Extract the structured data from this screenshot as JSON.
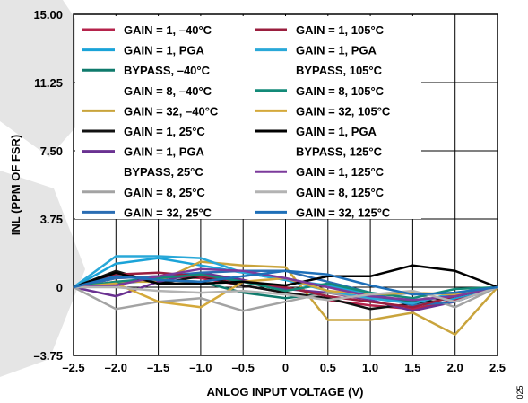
{
  "chart_data": {
    "type": "line",
    "title": "",
    "xlabel": "ANLOG INPUT VOLTAGE (V)",
    "ylabel": "INL (PPM OF FSR)",
    "xlim": [
      -2.5,
      2.5
    ],
    "ylim": [
      -3.75,
      15.0
    ],
    "x_ticks": [
      -2.5,
      -2.0,
      -1.5,
      -1.0,
      -0.5,
      0,
      0.5,
      1.0,
      1.5,
      2.0,
      2.5
    ],
    "x_tick_labels": [
      "–2.5",
      "–2.0",
      "–1.5",
      "–1.0",
      "–0.5",
      "0",
      "0.5",
      "1.0",
      "1.5",
      "2.0",
      "2.5"
    ],
    "y_ticks": [
      -3.75,
      0,
      3.75,
      7.5,
      11.25,
      15.0
    ],
    "y_tick_labels": [
      "–3.75",
      "0",
      "3.75",
      "7.50",
      "11.25",
      "15.00"
    ],
    "grid": true,
    "legend_position": "top",
    "x": [
      -2.5,
      -2.0,
      -1.5,
      -1.0,
      -0.5,
      0,
      0.5,
      1.0,
      1.5,
      2.0,
      2.5
    ],
    "series": [
      {
        "name": "GAIN = 1, –40°C",
        "color": "#b5234b",
        "values": [
          0,
          0.5,
          0.6,
          0.5,
          0.1,
          -0.3,
          -0.7,
          -1.0,
          -1.2,
          -0.7,
          0
        ]
      },
      {
        "name": "GAIN = 1, PGA BYPASS, –40°C",
        "color": "#1aa3d8",
        "values": [
          0,
          1.3,
          1.6,
          1.2,
          0.8,
          0.4,
          0.1,
          -0.4,
          -0.9,
          -0.6,
          0
        ]
      },
      {
        "name": "GAIN = 8, –40°C",
        "color": "#0f7a6c",
        "values": [
          0,
          0.2,
          0.4,
          0.3,
          -0.3,
          -0.6,
          -0.3,
          -0.6,
          -0.8,
          -0.4,
          0
        ]
      },
      {
        "name": "GAIN = 32, –40°C",
        "color": "#c9a43c",
        "values": [
          0,
          0.3,
          0.3,
          1.4,
          1.2,
          1.1,
          -1.8,
          -1.8,
          -1.4,
          -2.6,
          0
        ]
      },
      {
        "name": "GAIN = 1, 25°C",
        "color": "#111111",
        "values": [
          0,
          0.9,
          0.2,
          0.6,
          0.1,
          -0.3,
          -0.6,
          -1.2,
          -0.9,
          -0.5,
          0
        ]
      },
      {
        "name": "GAIN = 1, PGA BYPASS, 25°C",
        "color": "#6a3191",
        "values": [
          0,
          -0.5,
          0.3,
          0.8,
          0.4,
          -0.1,
          -0.3,
          -0.7,
          -1.3,
          -0.8,
          0
        ]
      },
      {
        "name": "GAIN = 8, 25°C",
        "color": "#a3a3a3",
        "values": [
          0,
          -1.2,
          -0.8,
          -0.6,
          -1.3,
          -0.8,
          -0.3,
          -0.6,
          -0.3,
          -1.1,
          0
        ]
      },
      {
        "name": "GAIN = 32, 25°C",
        "color": "#2a6db3",
        "values": [
          0,
          0.5,
          0.6,
          0.8,
          0.9,
          0.9,
          0.3,
          -0.3,
          -1.0,
          -0.8,
          0
        ]
      },
      {
        "name": "GAIN = 1, 105°C",
        "color": "#9a1e3e",
        "values": [
          0,
          0.7,
          0.8,
          0.6,
          0.3,
          0.0,
          -0.5,
          -0.8,
          -1.1,
          -0.5,
          0
        ]
      },
      {
        "name": "GAIN = 1, PGA BYPASS, 105°C",
        "color": "#29a8d8",
        "values": [
          0,
          1.7,
          1.7,
          1.6,
          0.8,
          0.4,
          -0.2,
          -0.6,
          -0.9,
          -0.3,
          0
        ]
      },
      {
        "name": "GAIN = 8, 105°C",
        "color": "#138a78",
        "values": [
          0,
          0.3,
          0.5,
          0.7,
          0.3,
          -0.2,
          0.2,
          -0.3,
          -0.6,
          -0.1,
          0
        ]
      },
      {
        "name": "GAIN = 32, 105°C",
        "color": "#d4a93b",
        "values": [
          0,
          0.2,
          -0.8,
          -1.1,
          0.3,
          0.5,
          -0.2,
          -0.4,
          -0.3,
          -0.4,
          0
        ]
      },
      {
        "name": "GAIN = 1, PGA BYPASS, 125°C",
        "color": "#000000",
        "values": [
          0,
          0.8,
          0.2,
          0.2,
          0.3,
          0.1,
          0.6,
          0.6,
          1.2,
          0.9,
          0
        ]
      },
      {
        "name": "GAIN = 1, 125°C",
        "color": "#7c3a9b",
        "values": [
          0,
          0.1,
          0.6,
          1.0,
          0.9,
          0.5,
          0.0,
          -0.5,
          -0.7,
          -0.5,
          0
        ]
      },
      {
        "name": "GAIN = 8, 125°C",
        "color": "#b3b3b3",
        "values": [
          0,
          0.0,
          -0.2,
          -0.3,
          -0.2,
          -0.4,
          -0.7,
          -0.4,
          -0.2,
          -0.8,
          0
        ]
      },
      {
        "name": "GAIN = 32, 125°C",
        "color": "#1e6fb8",
        "values": [
          0,
          0.6,
          0.4,
          0.3,
          0.6,
          0.9,
          0.7,
          0.1,
          -0.4,
          -0.3,
          0
        ]
      }
    ],
    "legend": [
      {
        "label": "GAIN = 1, –40°C",
        "color": "#b5234b",
        "swatch": true
      },
      {
        "label": "GAIN = 1, PGA",
        "color": "#1aa3d8",
        "swatch": true
      },
      {
        "label": "BYPASS, –40°C",
        "color": "#0f7a6c",
        "swatch": true
      },
      {
        "label": "GAIN = 8, –40°C",
        "color": "",
        "swatch": false
      },
      {
        "label": "GAIN = 32, –40°C",
        "color": "#c9a43c",
        "swatch": true
      },
      {
        "label": "GAIN = 1, 25°C",
        "color": "#111111",
        "swatch": true
      },
      {
        "label": "GAIN = 1, PGA",
        "color": "#6a3191",
        "swatch": true
      },
      {
        "label": "BYPASS, 25°C",
        "color": "",
        "swatch": false
      },
      {
        "label": "GAIN = 8, 25°C",
        "color": "#a3a3a3",
        "swatch": true
      },
      {
        "label": "GAIN = 32, 25°C",
        "color": "#2a6db3",
        "swatch": true
      },
      {
        "label": "GAIN = 1, 105°C",
        "color": "#9a1e3e",
        "swatch": true
      },
      {
        "label": "GAIN = 1, PGA",
        "color": "#29a8d8",
        "swatch": true
      },
      {
        "label": "BYPASS, 105°C",
        "color": "",
        "swatch": false
      },
      {
        "label": "GAIN = 8, 105°C",
        "color": "#138a78",
        "swatch": true
      },
      {
        "label": "GAIN = 32, 105°C",
        "color": "#d4a93b",
        "swatch": true
      },
      {
        "label": "GAIN = 1, PGA",
        "color": "#000000",
        "swatch": true
      },
      {
        "label": "BYPASS, 125°C",
        "color": "",
        "swatch": false
      },
      {
        "label": "GAIN = 1, 125°C",
        "color": "#7c3a9b",
        "swatch": true
      },
      {
        "label": "GAIN = 8, 125°C",
        "color": "#b3b3b3",
        "swatch": true
      },
      {
        "label": "GAIN = 32, 125°C",
        "color": "#1e6fb8",
        "swatch": true
      }
    ],
    "figure_code": "025"
  }
}
